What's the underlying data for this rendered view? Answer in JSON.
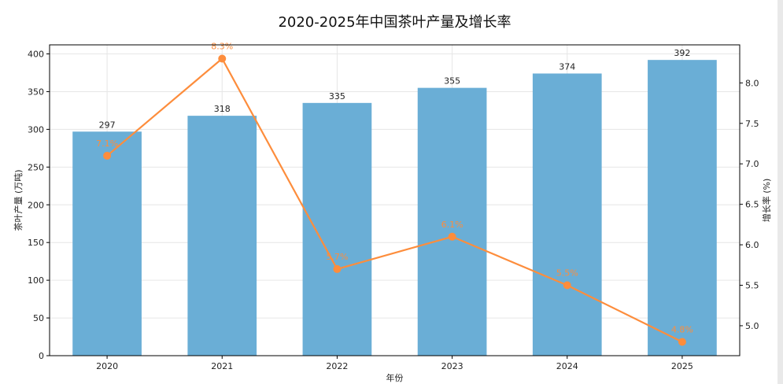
{
  "chart_data": {
    "type": "bar+line",
    "title": "2020-2025年中国茶叶产量及增长率",
    "xlabel": "年份",
    "ylabel_left": "茶叶产量 (万吨)",
    "ylabel_right": "增长率 (%)",
    "categories": [
      "2020",
      "2021",
      "2022",
      "2023",
      "2024",
      "2025"
    ],
    "series": [
      {
        "type": "bar",
        "axis": "left",
        "values": [
          297,
          318,
          335,
          355,
          374,
          392
        ],
        "labels": [
          "297",
          "318",
          "335",
          "355",
          "374",
          "392"
        ],
        "color": "#6aaed6"
      },
      {
        "type": "line",
        "axis": "right",
        "values": [
          7.1,
          8.3,
          5.7,
          6.1,
          5.5,
          4.8
        ],
        "labels": [
          "7.1%",
          "8.3%",
          "5.7%",
          "6.1%",
          "5.5%",
          "4.8%"
        ],
        "color": "#fd8d3c"
      }
    ],
    "ylim_left": [
      0,
      412
    ],
    "yticks_left": [
      0,
      50,
      100,
      150,
      200,
      250,
      300,
      350,
      400
    ],
    "ylim_right": [
      4.63,
      8.47
    ],
    "yticks_right": [
      5.0,
      5.5,
      6.0,
      6.5,
      7.0,
      7.5,
      8.0
    ],
    "grid": true
  }
}
